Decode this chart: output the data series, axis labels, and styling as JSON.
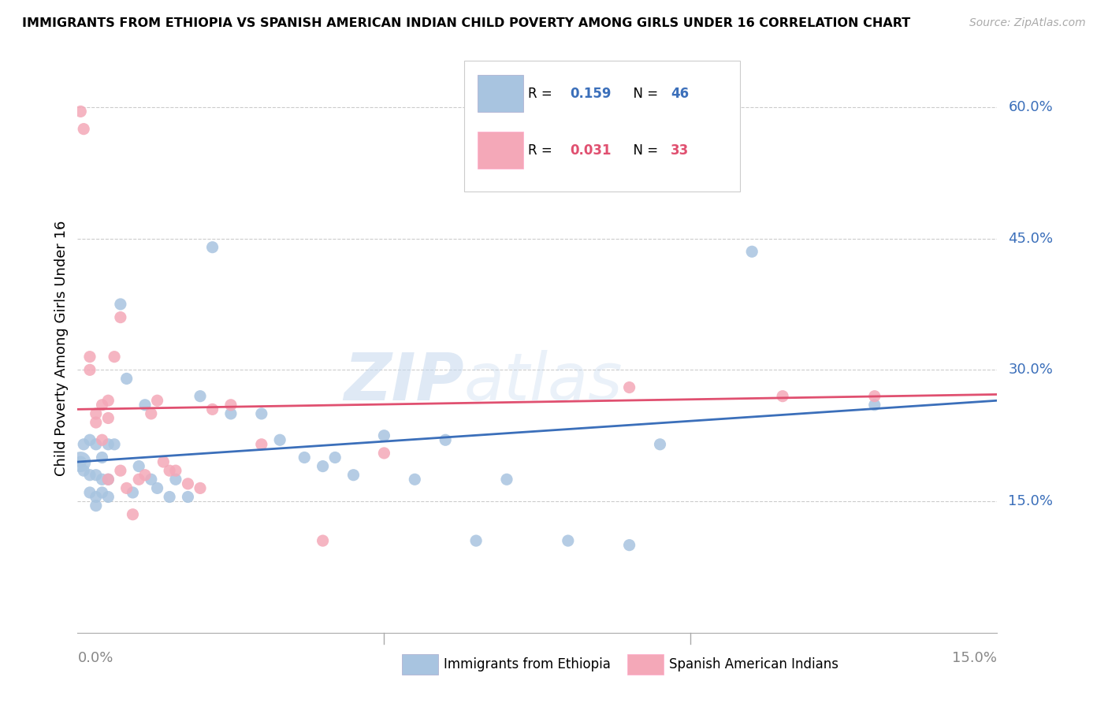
{
  "title": "IMMIGRANTS FROM ETHIOPIA VS SPANISH AMERICAN INDIAN CHILD POVERTY AMONG GIRLS UNDER 16 CORRELATION CHART",
  "source": "Source: ZipAtlas.com",
  "ylabel": "Child Poverty Among Girls Under 16",
  "y_tick_labels": [
    "15.0%",
    "30.0%",
    "45.0%",
    "60.0%"
  ],
  "y_ticks_pct": [
    0.15,
    0.3,
    0.45,
    0.6
  ],
  "xlim": [
    0.0,
    0.15
  ],
  "ylim": [
    0.0,
    0.65
  ],
  "blue_R": 0.159,
  "blue_N": 46,
  "pink_R": 0.031,
  "pink_N": 33,
  "blue_color": "#a8c4e0",
  "pink_color": "#f4a8b8",
  "blue_line_color": "#3b6fba",
  "pink_line_color": "#e05070",
  "watermark_zip": "ZIP",
  "watermark_atlas": "atlas",
  "blue_points_x": [
    0.0005,
    0.001,
    0.001,
    0.002,
    0.002,
    0.002,
    0.003,
    0.003,
    0.003,
    0.003,
    0.004,
    0.004,
    0.004,
    0.005,
    0.005,
    0.005,
    0.006,
    0.007,
    0.008,
    0.009,
    0.01,
    0.011,
    0.012,
    0.013,
    0.015,
    0.016,
    0.018,
    0.02,
    0.022,
    0.025,
    0.03,
    0.033,
    0.037,
    0.04,
    0.042,
    0.045,
    0.05,
    0.055,
    0.06,
    0.065,
    0.07,
    0.08,
    0.09,
    0.095,
    0.11,
    0.13
  ],
  "blue_points_y": [
    0.195,
    0.215,
    0.185,
    0.22,
    0.18,
    0.16,
    0.215,
    0.18,
    0.155,
    0.145,
    0.2,
    0.175,
    0.16,
    0.215,
    0.175,
    0.155,
    0.215,
    0.375,
    0.29,
    0.16,
    0.19,
    0.26,
    0.175,
    0.165,
    0.155,
    0.175,
    0.155,
    0.27,
    0.44,
    0.25,
    0.25,
    0.22,
    0.2,
    0.19,
    0.2,
    0.18,
    0.225,
    0.175,
    0.22,
    0.105,
    0.175,
    0.105,
    0.1,
    0.215,
    0.435,
    0.26
  ],
  "pink_points_x": [
    0.0005,
    0.001,
    0.002,
    0.002,
    0.003,
    0.003,
    0.004,
    0.004,
    0.005,
    0.005,
    0.005,
    0.006,
    0.007,
    0.007,
    0.008,
    0.009,
    0.01,
    0.011,
    0.012,
    0.013,
    0.014,
    0.015,
    0.016,
    0.018,
    0.02,
    0.022,
    0.025,
    0.03,
    0.04,
    0.05,
    0.09,
    0.115,
    0.13
  ],
  "pink_points_y": [
    0.595,
    0.575,
    0.3,
    0.315,
    0.24,
    0.25,
    0.26,
    0.22,
    0.265,
    0.245,
    0.175,
    0.315,
    0.36,
    0.185,
    0.165,
    0.135,
    0.175,
    0.18,
    0.25,
    0.265,
    0.195,
    0.185,
    0.185,
    0.17,
    0.165,
    0.255,
    0.26,
    0.215,
    0.105,
    0.205,
    0.28,
    0.27,
    0.27
  ]
}
